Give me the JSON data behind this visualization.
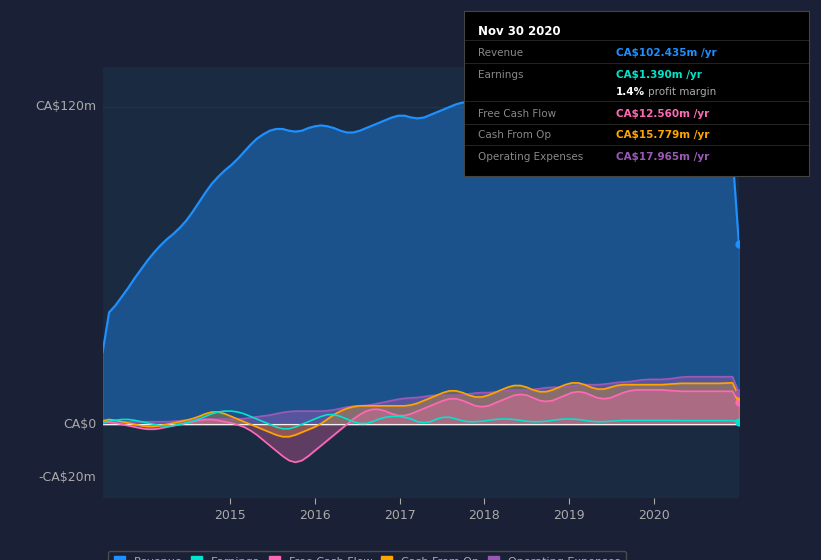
{
  "bg_color": "#1a2035",
  "plot_bg_color": "#1a2a40",
  "grid_color": "#2a3a55",
  "text_color": "#aaaaaa",
  "title_color": "#ffffff",
  "revenue_color": "#1e90ff",
  "earnings_color": "#00e5cc",
  "fcf_color": "#ff69b4",
  "cashfromop_color": "#ffa500",
  "opex_color": "#9b59b6",
  "legend_items": [
    "Revenue",
    "Earnings",
    "Free Cash Flow",
    "Cash From Op",
    "Operating Expenses"
  ],
  "legend_colors": [
    "#1e90ff",
    "#00e5cc",
    "#ff69b4",
    "#ffa500",
    "#9b59b6"
  ],
  "tooltip_title": "Nov 30 2020",
  "tooltip_rows": [
    {
      "label": "Revenue",
      "value": "CA$102.435m /yr",
      "color": "#1e90ff"
    },
    {
      "label": "Earnings",
      "value": "CA$1.390m /yr",
      "color": "#00e5cc"
    },
    {
      "label": "",
      "value": "1.4% profit margin",
      "color": "#ffffff"
    },
    {
      "label": "Free Cash Flow",
      "value": "CA$12.560m /yr",
      "color": "#ff69b4"
    },
    {
      "label": "Cash From Op",
      "value": "CA$15.779m /yr",
      "color": "#ffa500"
    },
    {
      "label": "Operating Expenses",
      "value": "CA$17.965m /yr",
      "color": "#9b59b6"
    }
  ]
}
